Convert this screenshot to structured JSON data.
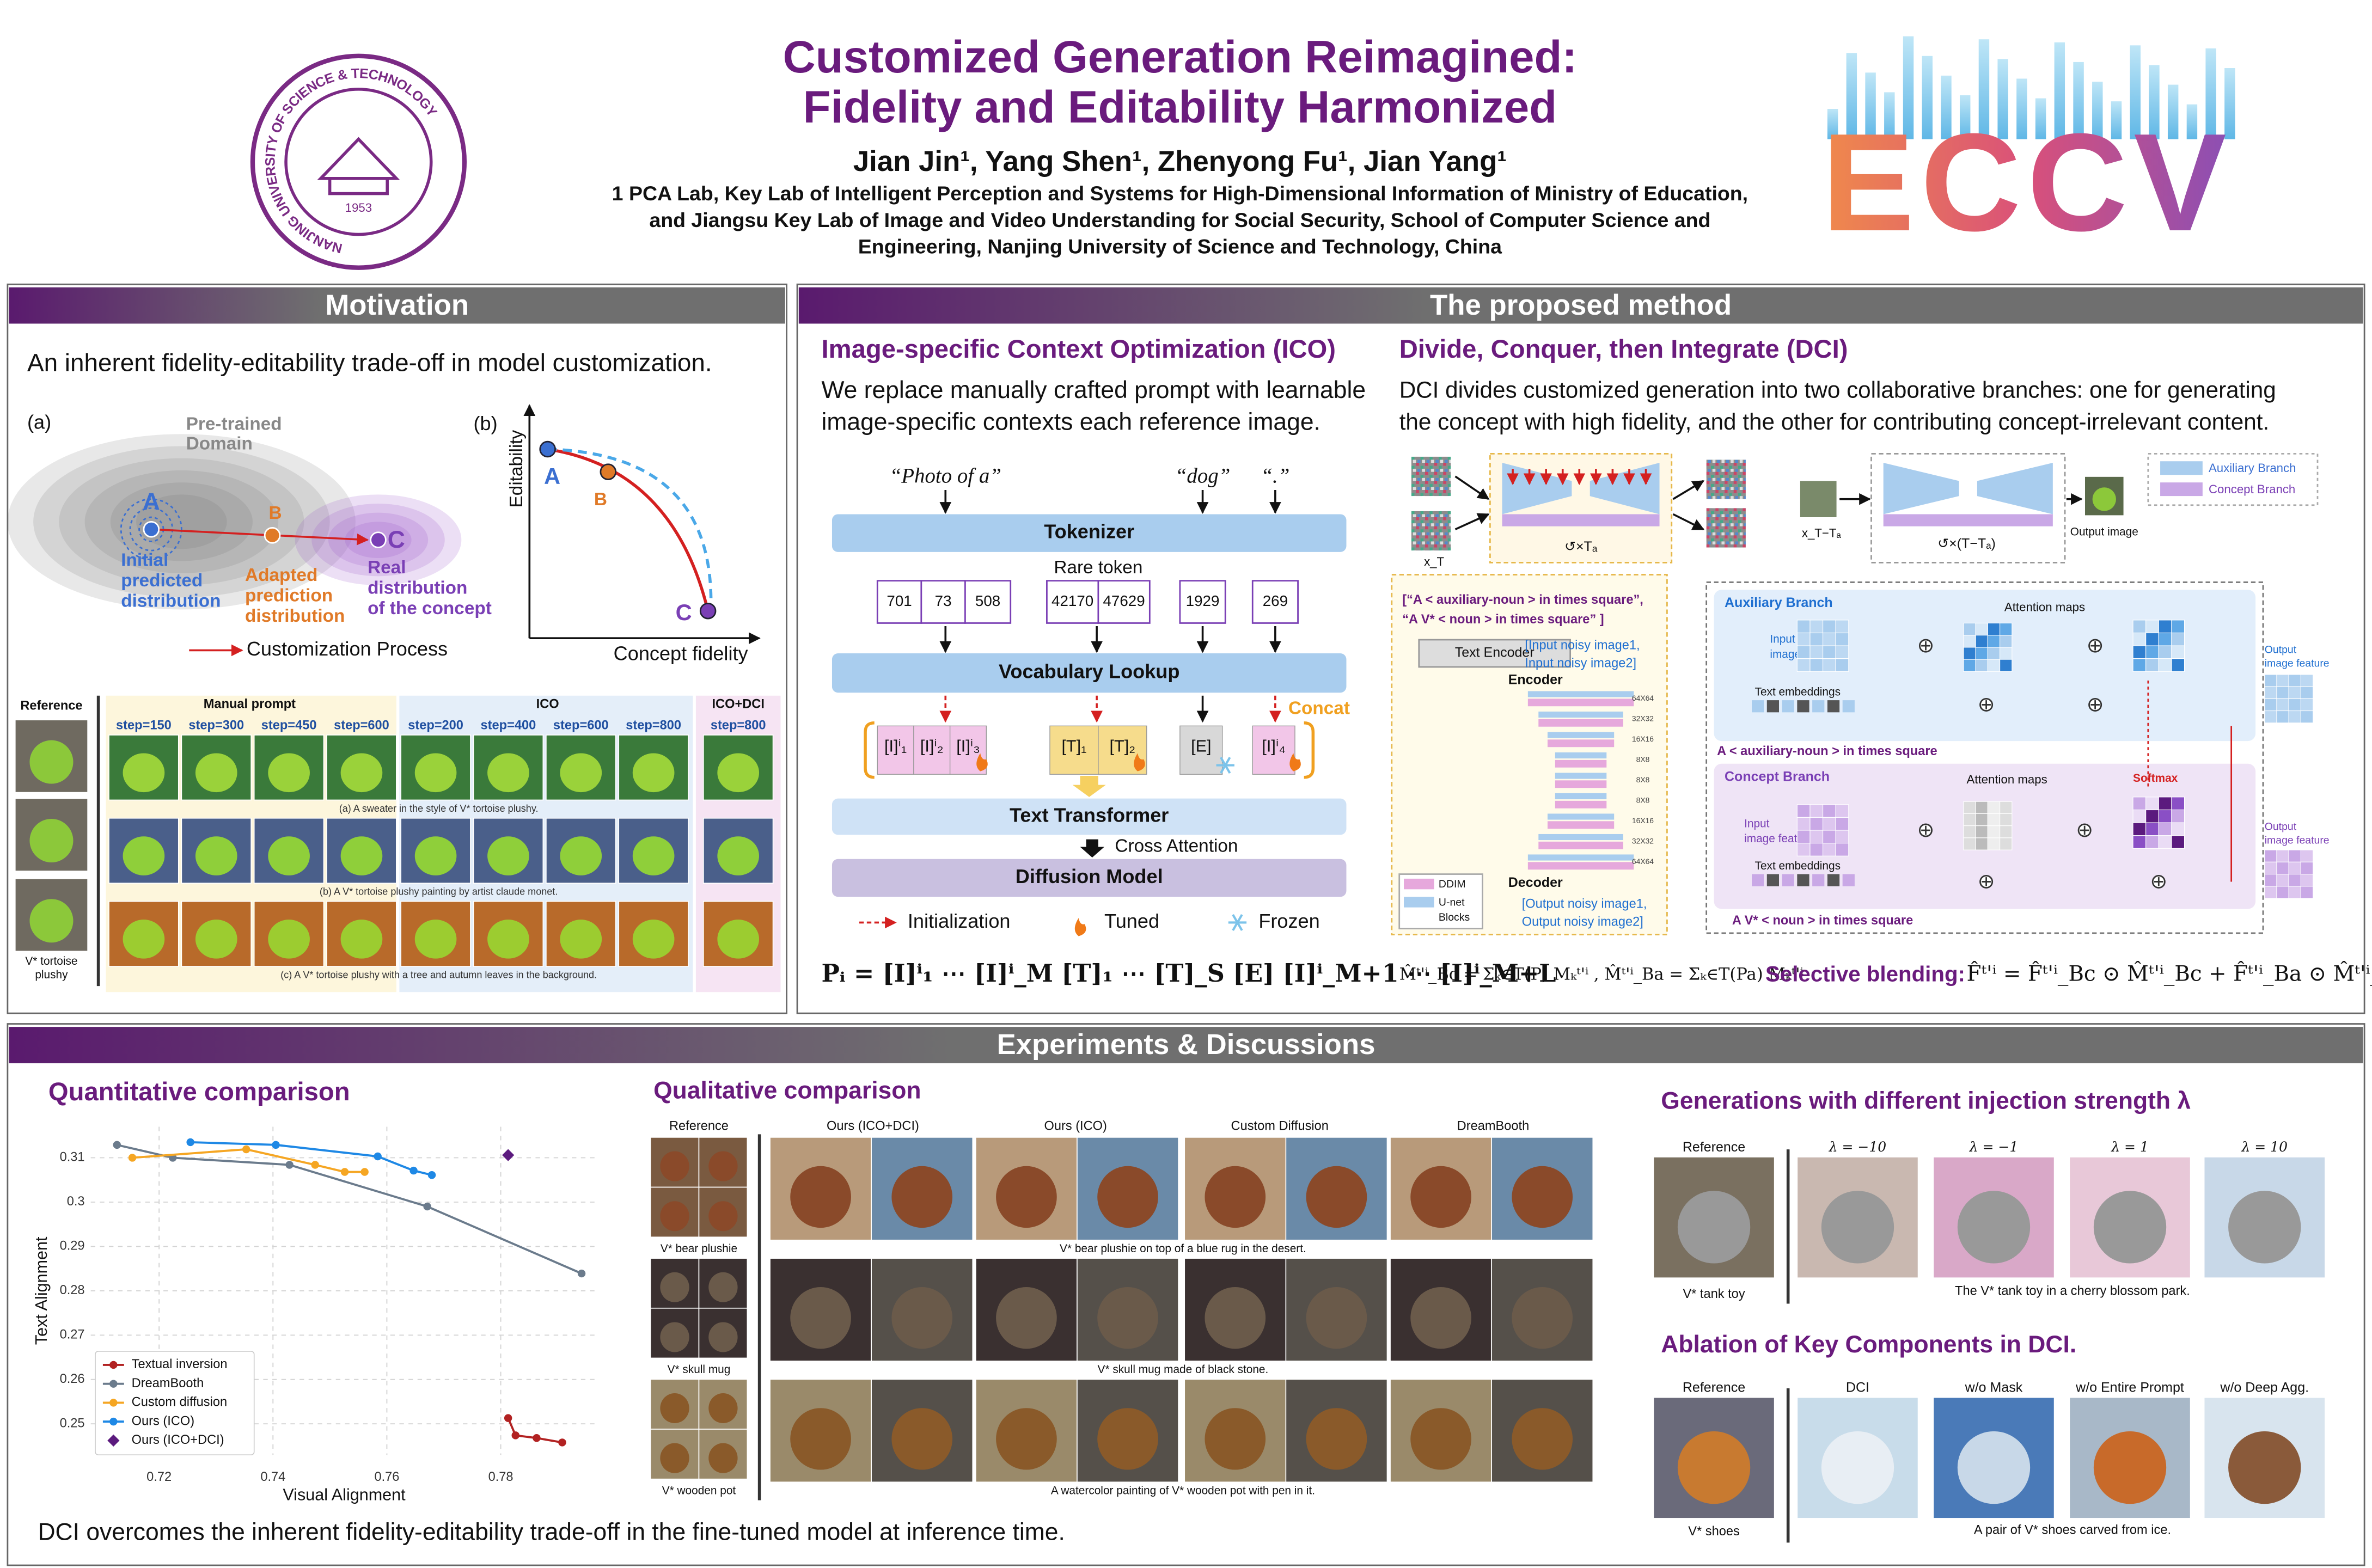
{
  "header": {
    "title": [
      "Customized Generation Reimagined:",
      "Fidelity and Editability Harmonized"
    ],
    "authors": "Jian Jin¹, Yang Shen¹, Zhenyong Fu¹, Jian Yang¹",
    "affiliation": [
      "1 PCA Lab, Key Lab of Intelligent Perception and Systems for High-Dimensional Information of Ministry of Education,",
      "and Jiangsu Key Lab of Image and Video Understanding for Social Security, School of Computer Science and",
      "Engineering, Nanjing University of Science and Technology, China"
    ],
    "logo": {
      "ring": "NANJING UNIVERSITY OF SCIENCE & TECHNOLOGY",
      "year": "1953"
    },
    "conference": "ECCV"
  },
  "motivation": {
    "title": "Motivation",
    "intro": "An inherent fidelity-editability trade-off in model customization.",
    "fig_a": {
      "label": "(a)",
      "domain": [
        "Pre-trained",
        "Domain"
      ],
      "A": "A",
      "B": "B",
      "C": "C",
      "initial": [
        "Initial",
        "predicted",
        "distribution"
      ],
      "adapted": [
        "Adapted",
        "prediction",
        "distribution"
      ],
      "real": [
        "Real",
        "distribution",
        "of the concept"
      ],
      "legend": "Customization Process"
    },
    "fig_b": {
      "label": "(b)",
      "y_axis": "Editability",
      "x_axis": "Concept fidelity",
      "A": "A",
      "B": "B",
      "C": "C"
    },
    "grid": {
      "reference": "Reference",
      "manual": "Manual prompt",
      "ico": "ICO",
      "icodci": "ICO+DCI",
      "steps": [
        "step=150",
        "step=300",
        "step=450",
        "step=600",
        "step=200",
        "step=400",
        "step=600",
        "step=800",
        "step=800"
      ],
      "captions": [
        "(a) A sweater in the style of V* tortoise plushy.",
        "(b) A V* tortoise plushy painting by artist claude monet.",
        "(c) A V* tortoise plushy with a tree and autumn leaves in the background."
      ],
      "ref_caption": [
        "V* tortoise",
        "plushy"
      ]
    }
  },
  "method": {
    "title": "The proposed method",
    "ico": {
      "heading": "Image-specific Context Optimization (ICO)",
      "text": [
        "We replace manually crafted prompt with learnable",
        "image-specific contexts each reference image."
      ],
      "prompts": [
        "“Photo of a”",
        "“dog”",
        "“.”"
      ],
      "tokenizer": "Tokenizer",
      "rare": "Rare token",
      "tokens": [
        "701",
        "73",
        "508",
        "42170",
        "47629",
        "1929",
        "269"
      ],
      "vocab": "Vocabulary Lookup",
      "concat": "Concat",
      "embeds": [
        "[I]ⁱ₁",
        "[I]ⁱ₂",
        "[I]ⁱ₃",
        "[T]₁",
        "[T]₂",
        "[E]",
        "[I]ⁱ₄"
      ],
      "transformer": "Text Transformer",
      "cross": "Cross Attention",
      "diffusion": "Diffusion Model",
      "legend": [
        "Initialization",
        "Tuned",
        "Frozen"
      ],
      "formula": "Pᵢ = [I]ⁱ₁ ⋯ [I]ⁱ_M [T]₁ ⋯ [T]_S [E] [I]ⁱ_M+1 ⋯ [I]ⁱ_M+L"
    },
    "dci": {
      "heading": "Divide, Conquer, then Integrate (DCI)",
      "text": [
        "DCI divides customized generation into two collaborative branches: one for generating",
        "the concept with high fidelity, and the other for contributing concept-irrelevant content."
      ],
      "xT": "x_T",
      "loop_a": "↺×Tₐ",
      "xTa": "x_T−Tₐ",
      "loop_b": "↺×(T−Tₐ)",
      "output": "Output image",
      "legend": [
        "Auxiliary Branch",
        "Concept Branch"
      ],
      "prompts": [
        "[“A < auxiliary-noun > in times square”,",
        "“A V* < noun > in times square” ]"
      ],
      "encoder_box": "Text Encoder",
      "inputs": [
        "[Input noisy image1,",
        "Input noisy image2]"
      ],
      "encoder": "Encoder",
      "decoder": "Decoder",
      "sizes": [
        "64X64",
        "32X32",
        "16X16",
        "8X8",
        "8X8",
        "8X8",
        "16X16",
        "32X32",
        "64X64"
      ],
      "outputs": [
        "[Output noisy image1,",
        "Output noisy image2]"
      ],
      "block_legend": [
        "DDIM",
        "U-net",
        "Blocks"
      ],
      "aux": {
        "title": "Auxiliary Branch",
        "input": [
          "Input",
          "image feature"
        ],
        "attn": "Attention maps",
        "text_emb": "Text embeddings",
        "output": [
          "Output",
          "image feature"
        ],
        "prompt": "A < auxiliary-noun > in times square"
      },
      "concept": {
        "title": "Concept Branch",
        "input": [
          "Input",
          "image feature"
        ],
        "attn": "Attention maps",
        "softmax": "Softmax",
        "text_emb": "Text embeddings",
        "output": [
          "Output",
          "image feature"
        ],
        "prompt": "A V* < noun > in times square"
      },
      "formula_mask": "M̂ᵗ'ⁱ_Bc = Σₖ∈T(P) Mₖᵗ'ⁱ ,  M̂ᵗ'ⁱ_Ba = Σₖ∈T(Pa) Mₖᵗ'ⁱ",
      "blend_label": "Selective blending:",
      "formula_blend": "F̂ᵗ'ⁱ = F̂ᵗ'ⁱ_Bc ⊙ M̂ᵗ'ⁱ_Bc + F̂ᵗ'ⁱ_Ba ⊙ M̂ᵗ'ⁱ_Ba"
    }
  },
  "experiments": {
    "title": "Experiments & Discussions",
    "quant_heading": "Quantitative comparison",
    "conclusion": "DCI overcomes the inherent fidelity-editability trade-off in the fine-tuned model at inference time.",
    "qual": {
      "heading": "Qualitative comparison",
      "columns": [
        "Reference",
        "Ours (ICO+DCI)",
        "Ours (ICO)",
        "Custom Diffusion",
        "DreamBooth"
      ],
      "ref_captions": [
        "V* bear plushie",
        "V* skull mug",
        "V* wooden pot"
      ],
      "captions": [
        "V* bear plushie on top of a blue rug in the desert.",
        "V* skull mug made of black stone.",
        "A watercolor painting of V* wooden pot with pen in it."
      ]
    },
    "injection": {
      "heading": "Generations with different injection strength λ",
      "labels": [
        "Reference",
        "λ = −10",
        "λ = −1",
        "λ = 1",
        "λ = 10"
      ],
      "ref_caption": "V* tank toy",
      "caption": "The V* tank toy in a cherry blossom park."
    },
    "ablation": {
      "heading": "Ablation of Key Components in DCI.",
      "labels": [
        "Reference",
        "DCI",
        "w/o Mask",
        "w/o Entire Prompt",
        "w/o Deep Agg."
      ],
      "ref_caption": "V* shoes",
      "caption": "A pair of V* shoes carved from ice."
    }
  },
  "chart_data": {
    "type": "line",
    "xlabel": "Visual Alignment",
    "ylabel": "Text Alignment",
    "xlim": [
      0.708,
      0.797
    ],
    "ylim": [
      0.243,
      0.317
    ],
    "xticks": [
      0.72,
      0.74,
      0.76,
      0.78
    ],
    "yticks": [
      0.25,
      0.26,
      0.27,
      0.28,
      0.29,
      0.3,
      0.31
    ],
    "grid": true,
    "legend": "lower left",
    "series": [
      {
        "name": "Textual inversion",
        "color": "#b22222",
        "marker": "circle",
        "x": [
          0.7813,
          0.7826,
          0.7863,
          0.7908
        ],
        "values": [
          0.2513,
          0.2474,
          0.2468,
          0.2458
        ]
      },
      {
        "name": "DreamBooth",
        "color": "#6b7b8c",
        "marker": "circle",
        "x": [
          0.7126,
          0.7224,
          0.7429,
          0.7671,
          0.7942
        ],
        "values": [
          0.3129,
          0.31,
          0.3084,
          0.299,
          0.2839
        ]
      },
      {
        "name": "Custom diffusion",
        "color": "#f5a623",
        "marker": "circle",
        "x": [
          0.7153,
          0.7353,
          0.7474,
          0.7526,
          0.7561
        ],
        "values": [
          0.31,
          0.3119,
          0.3084,
          0.3068,
          0.3068
        ]
      },
      {
        "name": "Ours (ICO)",
        "color": "#1e88e5",
        "marker": "circle",
        "x": [
          0.7255,
          0.7405,
          0.7584,
          0.7647,
          0.7679
        ],
        "values": [
          0.3135,
          0.3129,
          0.3103,
          0.3071,
          0.3061
        ]
      },
      {
        "name": "Ours (ICO+DCI)",
        "color": "#5b1a7e",
        "marker": "diamond",
        "x": [
          0.7813
        ],
        "values": [
          0.3106
        ]
      }
    ]
  }
}
